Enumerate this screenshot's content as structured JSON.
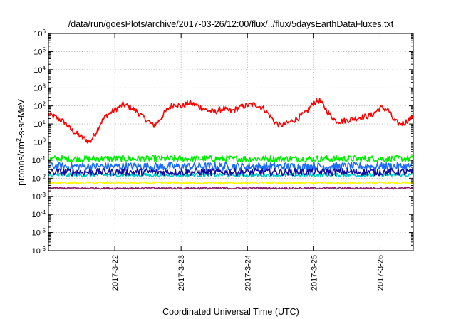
{
  "chart_data": {
    "type": "line",
    "title": "/data/run/goesPlots/archive/2017-03-26/12:00/flux/../flux/5daysEarthDataFluxes.txt",
    "xlabel": "Coordinated Universal Time (UTC)",
    "ylabel_base": "protons/cm",
    "ylabel_sup": "2",
    "ylabel_rest": "-s-sr-MeV",
    "yscale": "log",
    "ylim": [
      1e-06,
      1000000.0
    ],
    "xlim": [
      "2017-03-21 00:00",
      "2017-03-26 12:00"
    ],
    "grid": true,
    "legend": "none",
    "y_ticks": [
      {
        "value": 1e-06,
        "base": "10",
        "exp": "-6"
      },
      {
        "value": 1e-05,
        "base": "10",
        "exp": "-5"
      },
      {
        "value": 0.0001,
        "base": "10",
        "exp": "-4"
      },
      {
        "value": 0.001,
        "base": "10",
        "exp": "-3"
      },
      {
        "value": 0.01,
        "base": "10",
        "exp": "-2"
      },
      {
        "value": 0.1,
        "base": "10",
        "exp": "-1"
      },
      {
        "value": 1.0,
        "base": "10",
        "exp": "0"
      },
      {
        "value": 10.0,
        "base": "10",
        "exp": "1"
      },
      {
        "value": 100.0,
        "base": "10",
        "exp": "2"
      },
      {
        "value": 1000.0,
        "base": "10",
        "exp": "3"
      },
      {
        "value": 10000.0,
        "base": "10",
        "exp": "4"
      },
      {
        "value": 100000.0,
        "base": "10",
        "exp": "5"
      },
      {
        "value": 1000000.0,
        "base": "10",
        "exp": "6"
      }
    ],
    "x_ticks": [
      {
        "label": "2017-3-22",
        "date": "2017-03-22 00:00"
      },
      {
        "label": "2017-3-23",
        "date": "2017-03-23 00:00"
      },
      {
        "label": "2017-3-24",
        "date": "2017-03-24 00:00"
      },
      {
        "label": "2017-3-25",
        "date": "2017-03-25 00:00"
      },
      {
        "label": "2017-3-26",
        "date": "2017-03-26 00:00"
      }
    ],
    "series": [
      {
        "color": "#ff0000",
        "noise": 0.16,
        "points": [
          [
            "2017-03-21 00:00",
            35
          ],
          [
            "2017-03-21 03:00",
            22
          ],
          [
            "2017-03-21 06:00",
            12
          ],
          [
            "2017-03-21 08:00",
            5
          ],
          [
            "2017-03-21 10:00",
            3
          ],
          [
            "2017-03-21 13:00",
            1.5
          ],
          [
            "2017-03-21 15:00",
            1
          ],
          [
            "2017-03-21 17:00",
            3
          ],
          [
            "2017-03-21 19:00",
            12
          ],
          [
            "2017-03-21 21:00",
            30
          ],
          [
            "2017-03-22 00:00",
            60
          ],
          [
            "2017-03-22 03:00",
            120
          ],
          [
            "2017-03-22 06:00",
            80
          ],
          [
            "2017-03-22 08:00",
            50
          ],
          [
            "2017-03-22 10:00",
            25
          ],
          [
            "2017-03-22 12:00",
            15
          ],
          [
            "2017-03-22 14:00",
            8
          ],
          [
            "2017-03-22 16:00",
            15
          ],
          [
            "2017-03-22 18:00",
            40
          ],
          [
            "2017-03-22 20:00",
            90
          ],
          [
            "2017-03-22 22:00",
            130
          ],
          [
            "2017-03-23 00:00",
            90
          ],
          [
            "2017-03-23 03:00",
            150
          ],
          [
            "2017-03-23 06:00",
            100
          ],
          [
            "2017-03-23 09:00",
            60
          ],
          [
            "2017-03-23 12:00",
            45
          ],
          [
            "2017-03-23 15:00",
            70
          ],
          [
            "2017-03-23 18:00",
            50
          ],
          [
            "2017-03-23 21:00",
            80
          ],
          [
            "2017-03-24 00:00",
            110
          ],
          [
            "2017-03-24 03:00",
            120
          ],
          [
            "2017-03-24 06:00",
            70
          ],
          [
            "2017-03-24 08:00",
            30
          ],
          [
            "2017-03-24 10:00",
            12
          ],
          [
            "2017-03-24 12:00",
            8
          ],
          [
            "2017-03-24 15:00",
            12
          ],
          [
            "2017-03-24 18:00",
            20
          ],
          [
            "2017-03-24 21:00",
            40
          ],
          [
            "2017-03-25 00:00",
            150
          ],
          [
            "2017-03-25 02:00",
            200
          ],
          [
            "2017-03-25 04:00",
            80
          ],
          [
            "2017-03-25 06:00",
            30
          ],
          [
            "2017-03-25 08:00",
            15
          ],
          [
            "2017-03-25 10:00",
            14
          ],
          [
            "2017-03-25 12:00",
            16
          ],
          [
            "2017-03-25 15:00",
            20
          ],
          [
            "2017-03-25 18:00",
            25
          ],
          [
            "2017-03-25 21:00",
            30
          ],
          [
            "2017-03-26 00:00",
            80
          ],
          [
            "2017-03-26 03:00",
            60
          ],
          [
            "2017-03-26 05:00",
            15
          ],
          [
            "2017-03-26 07:00",
            10
          ],
          [
            "2017-03-26 09:00",
            12
          ],
          [
            "2017-03-26 11:00",
            20
          ],
          [
            "2017-03-26 12:00",
            25
          ]
        ]
      },
      {
        "color": "#00ee00",
        "noise": 0.18,
        "points": [
          [
            "2017-03-21 00:00",
            0.12
          ],
          [
            "2017-03-26 12:00",
            0.12
          ]
        ]
      },
      {
        "color": "#1a6cff",
        "noise": 0.22,
        "points": [
          [
            "2017-03-21 00:00",
            0.045
          ],
          [
            "2017-03-26 12:00",
            0.045
          ]
        ]
      },
      {
        "color": "#00cccc",
        "noise": 0.1,
        "points": [
          [
            "2017-03-21 00:00",
            0.015
          ],
          [
            "2017-03-26 12:00",
            0.015
          ]
        ]
      },
      {
        "color": "#1010a0",
        "noise": 0.2,
        "points": [
          [
            "2017-03-21 00:00",
            0.022
          ],
          [
            "2017-03-26 12:00",
            0.022
          ]
        ]
      },
      {
        "color": "#ffff00",
        "noise": 0.06,
        "points": [
          [
            "2017-03-21 00:00",
            0.0055
          ],
          [
            "2017-03-26 12:00",
            0.0055
          ]
        ]
      },
      {
        "color": "#8b1a6b",
        "noise": 0.05,
        "points": [
          [
            "2017-03-21 00:00",
            0.0028
          ],
          [
            "2017-03-26 12:00",
            0.0028
          ]
        ]
      }
    ]
  }
}
